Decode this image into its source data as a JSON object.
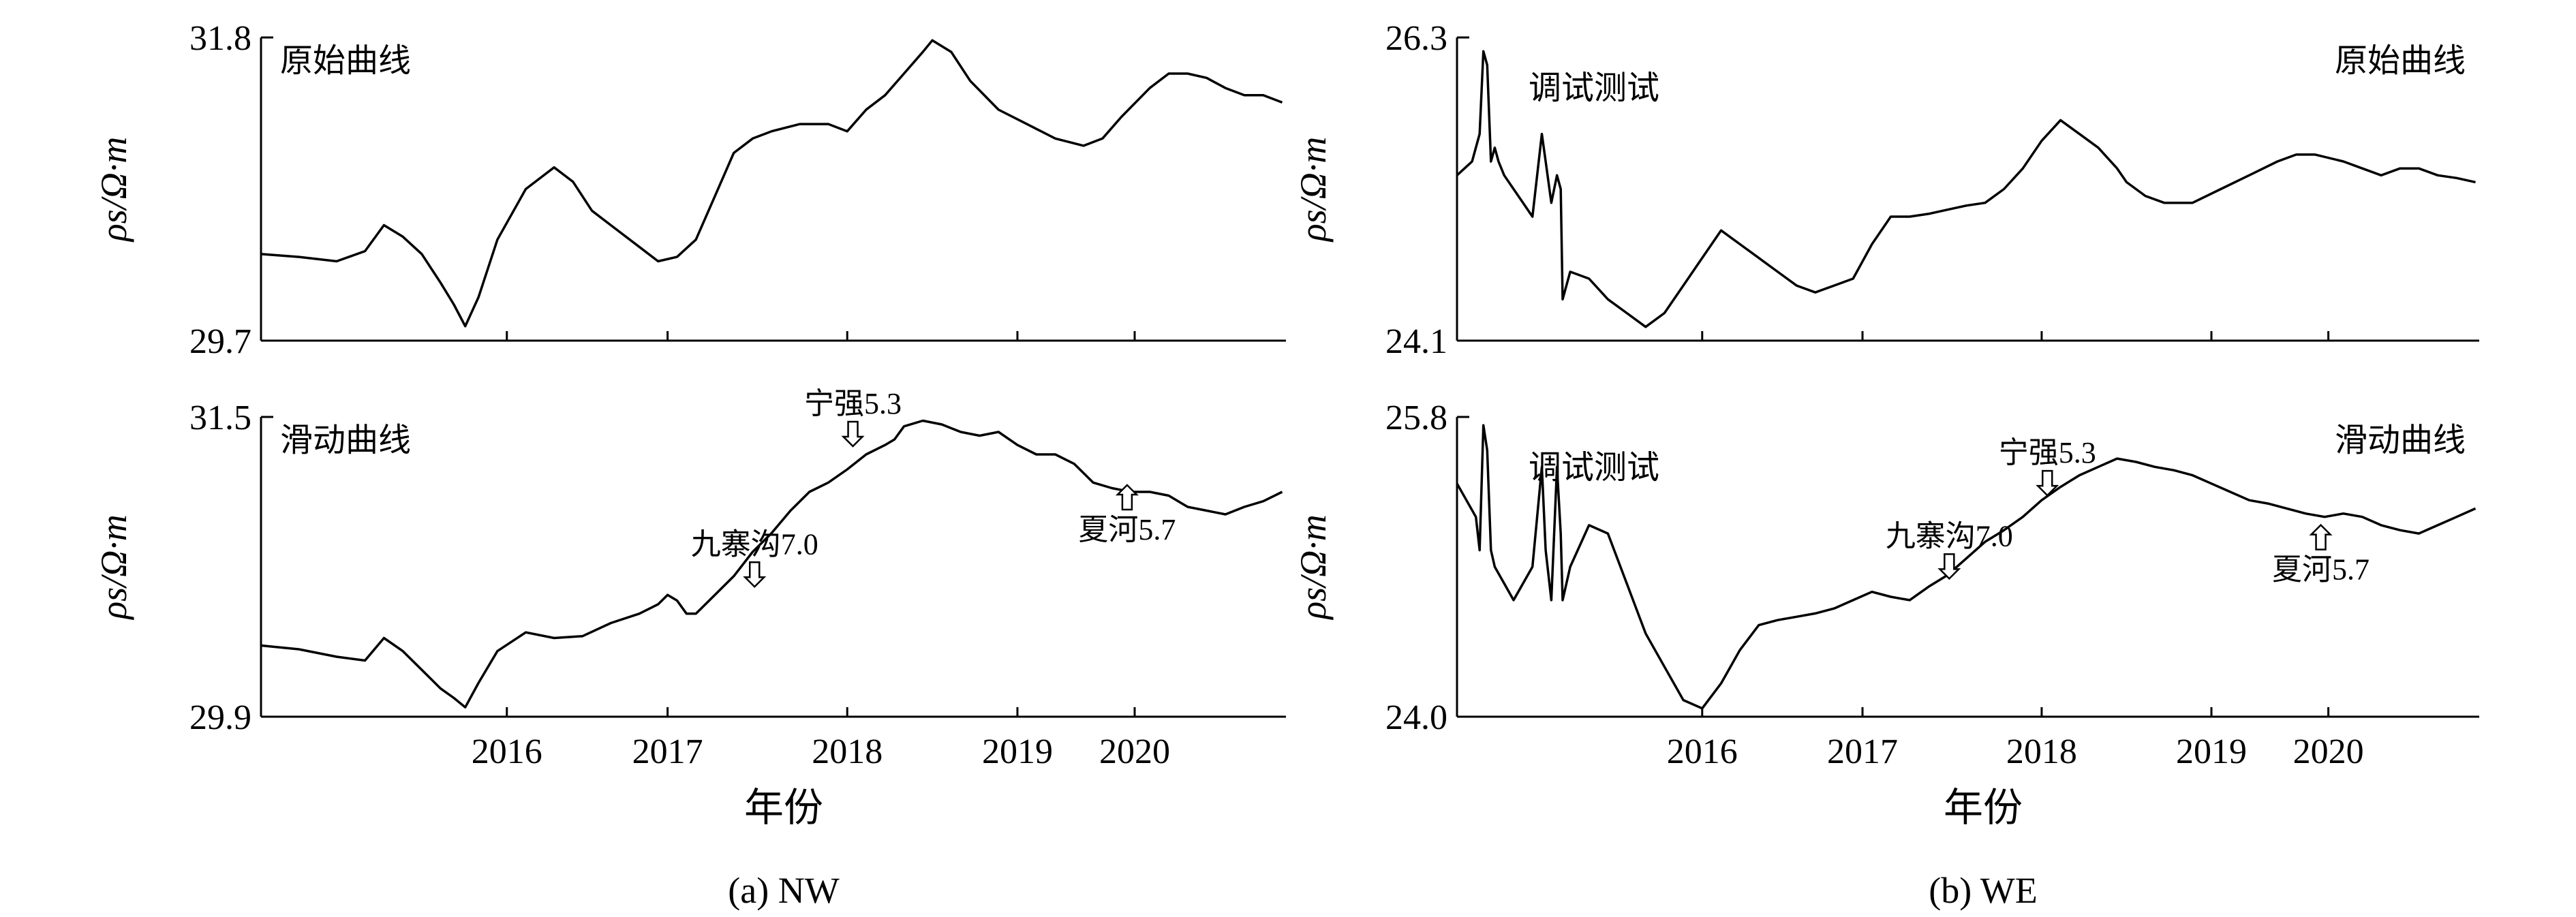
{
  "figure": {
    "x_axis_title": "年份",
    "y_axis_label": "ρs/Ω·m"
  },
  "chart_data": [
    {
      "type": "line",
      "caption": "(a) NW",
      "x_ticks": [
        "2016",
        "2017",
        "2018",
        "2019",
        "2020"
      ],
      "panels": [
        {
          "label": "原始曲线",
          "ylim": [
            29.7,
            31.8
          ],
          "y_ticks": [
            "29.7",
            "31.8"
          ],
          "series": [
            {
              "x": [
                2015.0,
                2015.2,
                2015.4,
                2015.55,
                2015.65,
                2015.75,
                2015.85,
                2015.95,
                2016.02,
                2016.08,
                2016.15,
                2016.25,
                2016.4,
                2016.55,
                2016.65,
                2016.75,
                2016.9,
                2017.0,
                2017.1,
                2017.2,
                2017.3,
                2017.4,
                2017.5,
                2017.6,
                2017.7,
                2017.85,
                2018.0,
                2018.1,
                2018.2,
                2018.3,
                2018.4,
                2018.5,
                2018.55,
                2018.65,
                2018.75,
                2018.9,
                2019.05,
                2019.2,
                2019.35,
                2019.45,
                2019.55,
                2019.7,
                2019.8,
                2019.9,
                2020.0,
                2020.1,
                2020.2,
                2020.3,
                2020.4
              ],
              "y": [
                30.3,
                30.28,
                30.25,
                30.32,
                30.5,
                30.42,
                30.3,
                30.1,
                29.95,
                29.8,
                30.0,
                30.4,
                30.75,
                30.9,
                30.8,
                30.6,
                30.45,
                30.35,
                30.25,
                30.28,
                30.4,
                30.7,
                31.0,
                31.1,
                31.15,
                31.2,
                31.2,
                31.15,
                31.3,
                31.4,
                31.55,
                31.7,
                31.78,
                31.7,
                31.5,
                31.3,
                31.2,
                31.1,
                31.05,
                31.1,
                31.25,
                31.45,
                31.55,
                31.55,
                31.52,
                31.45,
                31.4,
                31.4,
                31.35
              ]
            }
          ]
        },
        {
          "label": "滑动曲线",
          "ylim": [
            29.9,
            31.5
          ],
          "y_ticks": [
            "29.9",
            "31.5"
          ],
          "series": [
            {
              "x": [
                2015.0,
                2015.2,
                2015.4,
                2015.55,
                2015.65,
                2015.75,
                2015.85,
                2015.95,
                2016.02,
                2016.08,
                2016.15,
                2016.25,
                2016.4,
                2016.55,
                2016.7,
                2016.85,
                2017.0,
                2017.1,
                2017.15,
                2017.2,
                2017.25,
                2017.3,
                2017.4,
                2017.5,
                2017.6,
                2017.7,
                2017.8,
                2017.9,
                2018.0,
                2018.1,
                2018.2,
                2018.3,
                2018.35,
                2018.4,
                2018.5,
                2018.6,
                2018.7,
                2018.8,
                2018.9,
                2019.0,
                2019.1,
                2019.2,
                2019.3,
                2019.4,
                2019.5,
                2019.6,
                2019.7,
                2019.8,
                2019.9,
                2020.0,
                2020.1,
                2020.2,
                2020.3,
                2020.4
              ],
              "y": [
                30.28,
                30.26,
                30.22,
                30.2,
                30.32,
                30.25,
                30.15,
                30.05,
                30.0,
                29.95,
                30.08,
                30.25,
                30.35,
                30.32,
                30.33,
                30.4,
                30.45,
                30.5,
                30.55,
                30.52,
                30.45,
                30.45,
                30.55,
                30.65,
                30.78,
                30.88,
                31.0,
                31.1,
                31.15,
                31.22,
                31.3,
                31.35,
                31.38,
                31.45,
                31.48,
                31.46,
                31.42,
                31.4,
                31.42,
                31.35,
                31.3,
                31.3,
                31.25,
                31.15,
                31.12,
                31.1,
                31.1,
                31.08,
                31.02,
                31.0,
                30.98,
                31.02,
                31.05,
                31.1
              ]
            }
          ],
          "annotations": [
            {
              "text": "九寨沟7.0",
              "x": 2017.61,
              "y": 30.55,
              "arrow": "down"
            },
            {
              "text": "宁强5.3",
              "x": 2018.13,
              "y": 31.3,
              "arrow": "down"
            },
            {
              "text": "夏河5.7",
              "x": 2019.58,
              "y": 31.18,
              "arrow": "up"
            }
          ]
        }
      ]
    },
    {
      "type": "line",
      "caption": "(b) WE",
      "x_ticks": [
        "2016",
        "2017",
        "2018",
        "2019",
        "2020"
      ],
      "panels": [
        {
          "label": "原始曲线",
          "ylim": [
            24.1,
            26.3
          ],
          "y_ticks": [
            "24.1",
            "26.3"
          ],
          "annotations_text": [
            "调试测试"
          ],
          "series": [
            {
              "x": [
                2015.0,
                2015.08,
                2015.12,
                2015.14,
                2015.16,
                2015.18,
                2015.2,
                2015.22,
                2015.25,
                2015.3,
                2015.35,
                2015.4,
                2015.45,
                2015.47,
                2015.5,
                2015.53,
                2015.55,
                2015.56,
                2015.6,
                2015.7,
                2015.8,
                2015.9,
                2016.0,
                2016.1,
                2016.2,
                2016.3,
                2016.4,
                2016.5,
                2016.6,
                2016.7,
                2016.8,
                2016.9,
                2017.0,
                2017.1,
                2017.2,
                2017.3,
                2017.4,
                2017.5,
                2017.6,
                2017.7,
                2017.8,
                2017.9,
                2018.0,
                2018.1,
                2018.2,
                2018.3,
                2018.4,
                2018.5,
                2018.55,
                2018.65,
                2018.75,
                2018.9,
                2019.05,
                2019.2,
                2019.35,
                2019.45,
                2019.55,
                2019.7,
                2019.8,
                2019.9,
                2020.0,
                2020.1,
                2020.2,
                2020.3,
                2020.4
              ],
              "y": [
                25.3,
                25.4,
                25.6,
                26.2,
                26.1,
                25.4,
                25.5,
                25.4,
                25.3,
                25.2,
                25.1,
                25.0,
                25.6,
                25.4,
                25.1,
                25.3,
                25.2,
                24.4,
                24.6,
                24.55,
                24.4,
                24.3,
                24.2,
                24.3,
                24.5,
                24.7,
                24.9,
                24.8,
                24.7,
                24.6,
                24.5,
                24.45,
                24.5,
                24.55,
                24.8,
                25.0,
                25.0,
                25.02,
                25.05,
                25.08,
                25.1,
                25.2,
                25.35,
                25.55,
                25.7,
                25.6,
                25.5,
                25.35,
                25.25,
                25.15,
                25.1,
                25.1,
                25.2,
                25.3,
                25.4,
                25.45,
                25.45,
                25.4,
                25.35,
                25.3,
                25.35,
                25.35,
                25.3,
                25.28,
                25.25
              ]
            }
          ]
        },
        {
          "label": "滑动曲线",
          "ylim": [
            24.0,
            25.8
          ],
          "y_ticks": [
            "24.0",
            "25.8"
          ],
          "annotations_text": [
            "调试测试"
          ],
          "series": [
            {
              "x": [
                2015.0,
                2015.05,
                2015.1,
                2015.12,
                2015.14,
                2015.16,
                2015.18,
                2015.2,
                2015.25,
                2015.3,
                2015.35,
                2015.4,
                2015.45,
                2015.47,
                2015.5,
                2015.53,
                2015.55,
                2015.56,
                2015.6,
                2015.7,
                2015.8,
                2015.9,
                2016.0,
                2016.1,
                2016.2,
                2016.3,
                2016.4,
                2016.5,
                2016.6,
                2016.7,
                2016.8,
                2016.9,
                2017.0,
                2017.1,
                2017.2,
                2017.3,
                2017.4,
                2017.5,
                2017.6,
                2017.7,
                2017.8,
                2017.9,
                2018.0,
                2018.1,
                2018.2,
                2018.3,
                2018.4,
                2018.5,
                2018.6,
                2018.7,
                2018.8,
                2018.9,
                2019.0,
                2019.1,
                2019.2,
                2019.3,
                2019.4,
                2019.5,
                2019.6,
                2019.7,
                2019.8,
                2019.9,
                2020.0,
                2020.1,
                2020.2,
                2020.3,
                2020.4
              ],
              "y": [
                25.4,
                25.3,
                25.2,
                25.0,
                25.75,
                25.6,
                25.0,
                24.9,
                24.8,
                24.7,
                24.8,
                24.9,
                25.5,
                25.0,
                24.7,
                25.5,
                25.1,
                24.7,
                24.9,
                25.15,
                25.1,
                24.8,
                24.5,
                24.3,
                24.1,
                24.05,
                24.2,
                24.4,
                24.55,
                24.58,
                24.6,
                24.62,
                24.65,
                24.7,
                24.75,
                24.72,
                24.7,
                24.78,
                24.85,
                24.95,
                25.05,
                25.12,
                25.2,
                25.3,
                25.38,
                25.45,
                25.5,
                25.55,
                25.53,
                25.5,
                25.48,
                25.45,
                25.4,
                25.35,
                25.3,
                25.28,
                25.25,
                25.22,
                25.2,
                25.22,
                25.2,
                25.15,
                25.12,
                25.1,
                25.15,
                25.2,
                25.25
              ]
            }
          ],
          "annotations": [
            {
              "text": "九寨沟7.0",
              "x": 2017.61,
              "y": 24.78,
              "arrow": "down"
            },
            {
              "text": "宁强5.3",
              "x": 2018.13,
              "y": 25.28,
              "arrow": "down"
            },
            {
              "text": "夏河5.7",
              "x": 2019.58,
              "y": 25.2,
              "arrow": "up"
            }
          ]
        }
      ]
    }
  ]
}
